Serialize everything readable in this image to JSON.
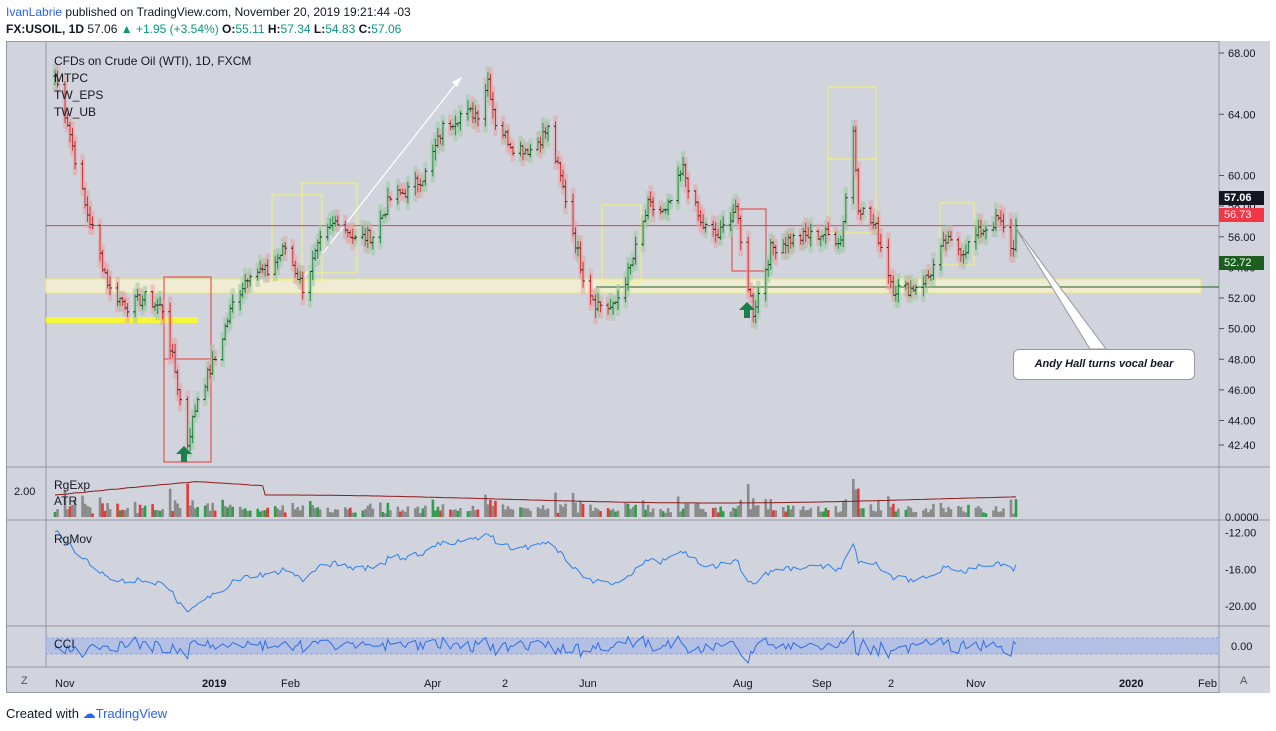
{
  "header": {
    "user": "IvanLabrie",
    "published": "published on TradingView.com, November 20, 2019 19:21:44 -03",
    "symbol": "FX:USOIL, 1D",
    "price": "57.06",
    "change": "+1.95 (+3.54%)",
    "o_label": "O:",
    "o_val": "55.11",
    "h_label": "H:",
    "h_val": "57.34",
    "l_label": "L:",
    "l_val": "54.83",
    "c_label": "C:",
    "c_val": "57.06"
  },
  "legend": {
    "title": "CFDs on Crude Oil (WTI), 1D, FXCM",
    "ind1": "MTPC",
    "ind2": "TW_EPS",
    "ind3": "TW_UB"
  },
  "annotation": "Andy Hall turns vocal bear",
  "price_tags": {
    "last": "57.06",
    "level_red": "56.73",
    "level_green": "52.72"
  },
  "panes": {
    "rgexp": "RgExp",
    "atr": "ATR",
    "rgexp_left": "2.00",
    "rgmov": "RgMov",
    "cci": "CCI"
  },
  "footer": {
    "created_with": "Created with",
    "brand": "TradingView"
  },
  "corners": {
    "left": "Z",
    "right": "A"
  },
  "colors": {
    "up": "#089981",
    "down": "#f23645",
    "bg": "#d1d4dc",
    "line": "#2962ff"
  },
  "chart_data": {
    "type": "candlestick",
    "title": "CFDs on Crude Oil (WTI), 1D, FXCM",
    "x_ticks": [
      "Nov",
      "2019",
      "Feb",
      "Apr",
      "2",
      "Jun",
      "Aug",
      "Sep",
      "2",
      "Nov",
      "2020",
      "Feb"
    ],
    "price_axis": {
      "ticks": [
        "68.00",
        "64.00",
        "60.00",
        "58.00",
        "56.00",
        "54.00",
        "52.00",
        "50.00",
        "48.00",
        "46.00",
        "44.00",
        "42.40"
      ],
      "range": [
        41.0,
        68.6
      ]
    },
    "rgexp_axis": {
      "ticks": [
        "0.0000"
      ]
    },
    "rgmov_axis": {
      "ticks": [
        "-12.00",
        "-16.00",
        "-20.00"
      ],
      "range": [
        -21.5,
        -11.5
      ]
    },
    "cci_axis": {
      "ticks": [
        "0.00"
      ]
    },
    "levels": [
      {
        "price": 56.73,
        "color": "#f23645"
      },
      {
        "price": 52.72,
        "color": "#1b5e20"
      }
    ],
    "price_path": [
      {
        "date": "2018-11-01",
        "close": 66.5
      },
      {
        "date": "2018-11-06",
        "close": 63.5
      },
      {
        "date": "2018-11-13",
        "close": 58.0
      },
      {
        "date": "2018-11-16",
        "close": 56.5
      },
      {
        "date": "2018-11-23",
        "close": 52.5
      },
      {
        "date": "2018-11-30",
        "close": 51.5
      },
      {
        "date": "2018-12-07",
        "close": 52.0
      },
      {
        "date": "2018-12-14",
        "close": 51.3
      },
      {
        "date": "2018-12-19",
        "close": 47.2
      },
      {
        "date": "2018-12-24",
        "close": 42.5
      },
      {
        "date": "2018-12-28",
        "close": 45.5
      },
      {
        "date": "2019-01-04",
        "close": 48.0
      },
      {
        "date": "2019-01-11",
        "close": 51.6
      },
      {
        "date": "2019-01-18",
        "close": 53.8
      },
      {
        "date": "2019-01-25",
        "close": 53.7
      },
      {
        "date": "2019-02-01",
        "close": 55.3
      },
      {
        "date": "2019-02-08",
        "close": 52.7
      },
      {
        "date": "2019-02-15",
        "close": 55.6
      },
      {
        "date": "2019-02-22",
        "close": 57.2
      },
      {
        "date": "2019-03-01",
        "close": 55.8
      },
      {
        "date": "2019-03-08",
        "close": 56.1
      },
      {
        "date": "2019-03-15",
        "close": 58.5
      },
      {
        "date": "2019-03-22",
        "close": 59.0
      },
      {
        "date": "2019-03-29",
        "close": 60.1
      },
      {
        "date": "2019-04-05",
        "close": 63.1
      },
      {
        "date": "2019-04-12",
        "close": 64.0
      },
      {
        "date": "2019-04-19",
        "close": 64.1
      },
      {
        "date": "2019-04-23",
        "close": 66.3
      },
      {
        "date": "2019-04-26",
        "close": 63.5
      },
      {
        "date": "2019-05-03",
        "close": 61.9
      },
      {
        "date": "2019-05-10",
        "close": 61.7
      },
      {
        "date": "2019-05-17",
        "close": 63.0
      },
      {
        "date": "2019-05-24",
        "close": 58.5
      },
      {
        "date": "2019-05-31",
        "close": 53.5
      },
      {
        "date": "2019-06-05",
        "close": 51.7
      },
      {
        "date": "2019-06-12",
        "close": 51.3
      },
      {
        "date": "2019-06-19",
        "close": 54.0
      },
      {
        "date": "2019-06-26",
        "close": 58.0
      },
      {
        "date": "2019-07-03",
        "close": 57.5
      },
      {
        "date": "2019-07-10",
        "close": 60.4
      },
      {
        "date": "2019-07-17",
        "close": 56.8
      },
      {
        "date": "2019-07-24",
        "close": 56.0
      },
      {
        "date": "2019-07-31",
        "close": 58.0
      },
      {
        "date": "2019-08-02",
        "close": 55.5
      },
      {
        "date": "2019-08-07",
        "close": 51.1
      },
      {
        "date": "2019-08-14",
        "close": 55.2
      },
      {
        "date": "2019-08-21",
        "close": 55.8
      },
      {
        "date": "2019-08-28",
        "close": 56.0
      },
      {
        "date": "2019-09-04",
        "close": 56.2
      },
      {
        "date": "2019-09-11",
        "close": 55.8
      },
      {
        "date": "2019-09-16",
        "close": 62.9
      },
      {
        "date": "2019-09-18",
        "close": 58.1
      },
      {
        "date": "2019-09-25",
        "close": 56.5
      },
      {
        "date": "2019-10-02",
        "close": 52.6
      },
      {
        "date": "2019-10-09",
        "close": 52.6
      },
      {
        "date": "2019-10-16",
        "close": 53.4
      },
      {
        "date": "2019-10-23",
        "close": 55.7
      },
      {
        "date": "2019-10-30",
        "close": 55.1
      },
      {
        "date": "2019-11-06",
        "close": 56.4
      },
      {
        "date": "2019-11-13",
        "close": 57.1
      },
      {
        "date": "2019-11-19",
        "close": 55.1
      },
      {
        "date": "2019-11-20",
        "close": 57.06
      }
    ]
  }
}
